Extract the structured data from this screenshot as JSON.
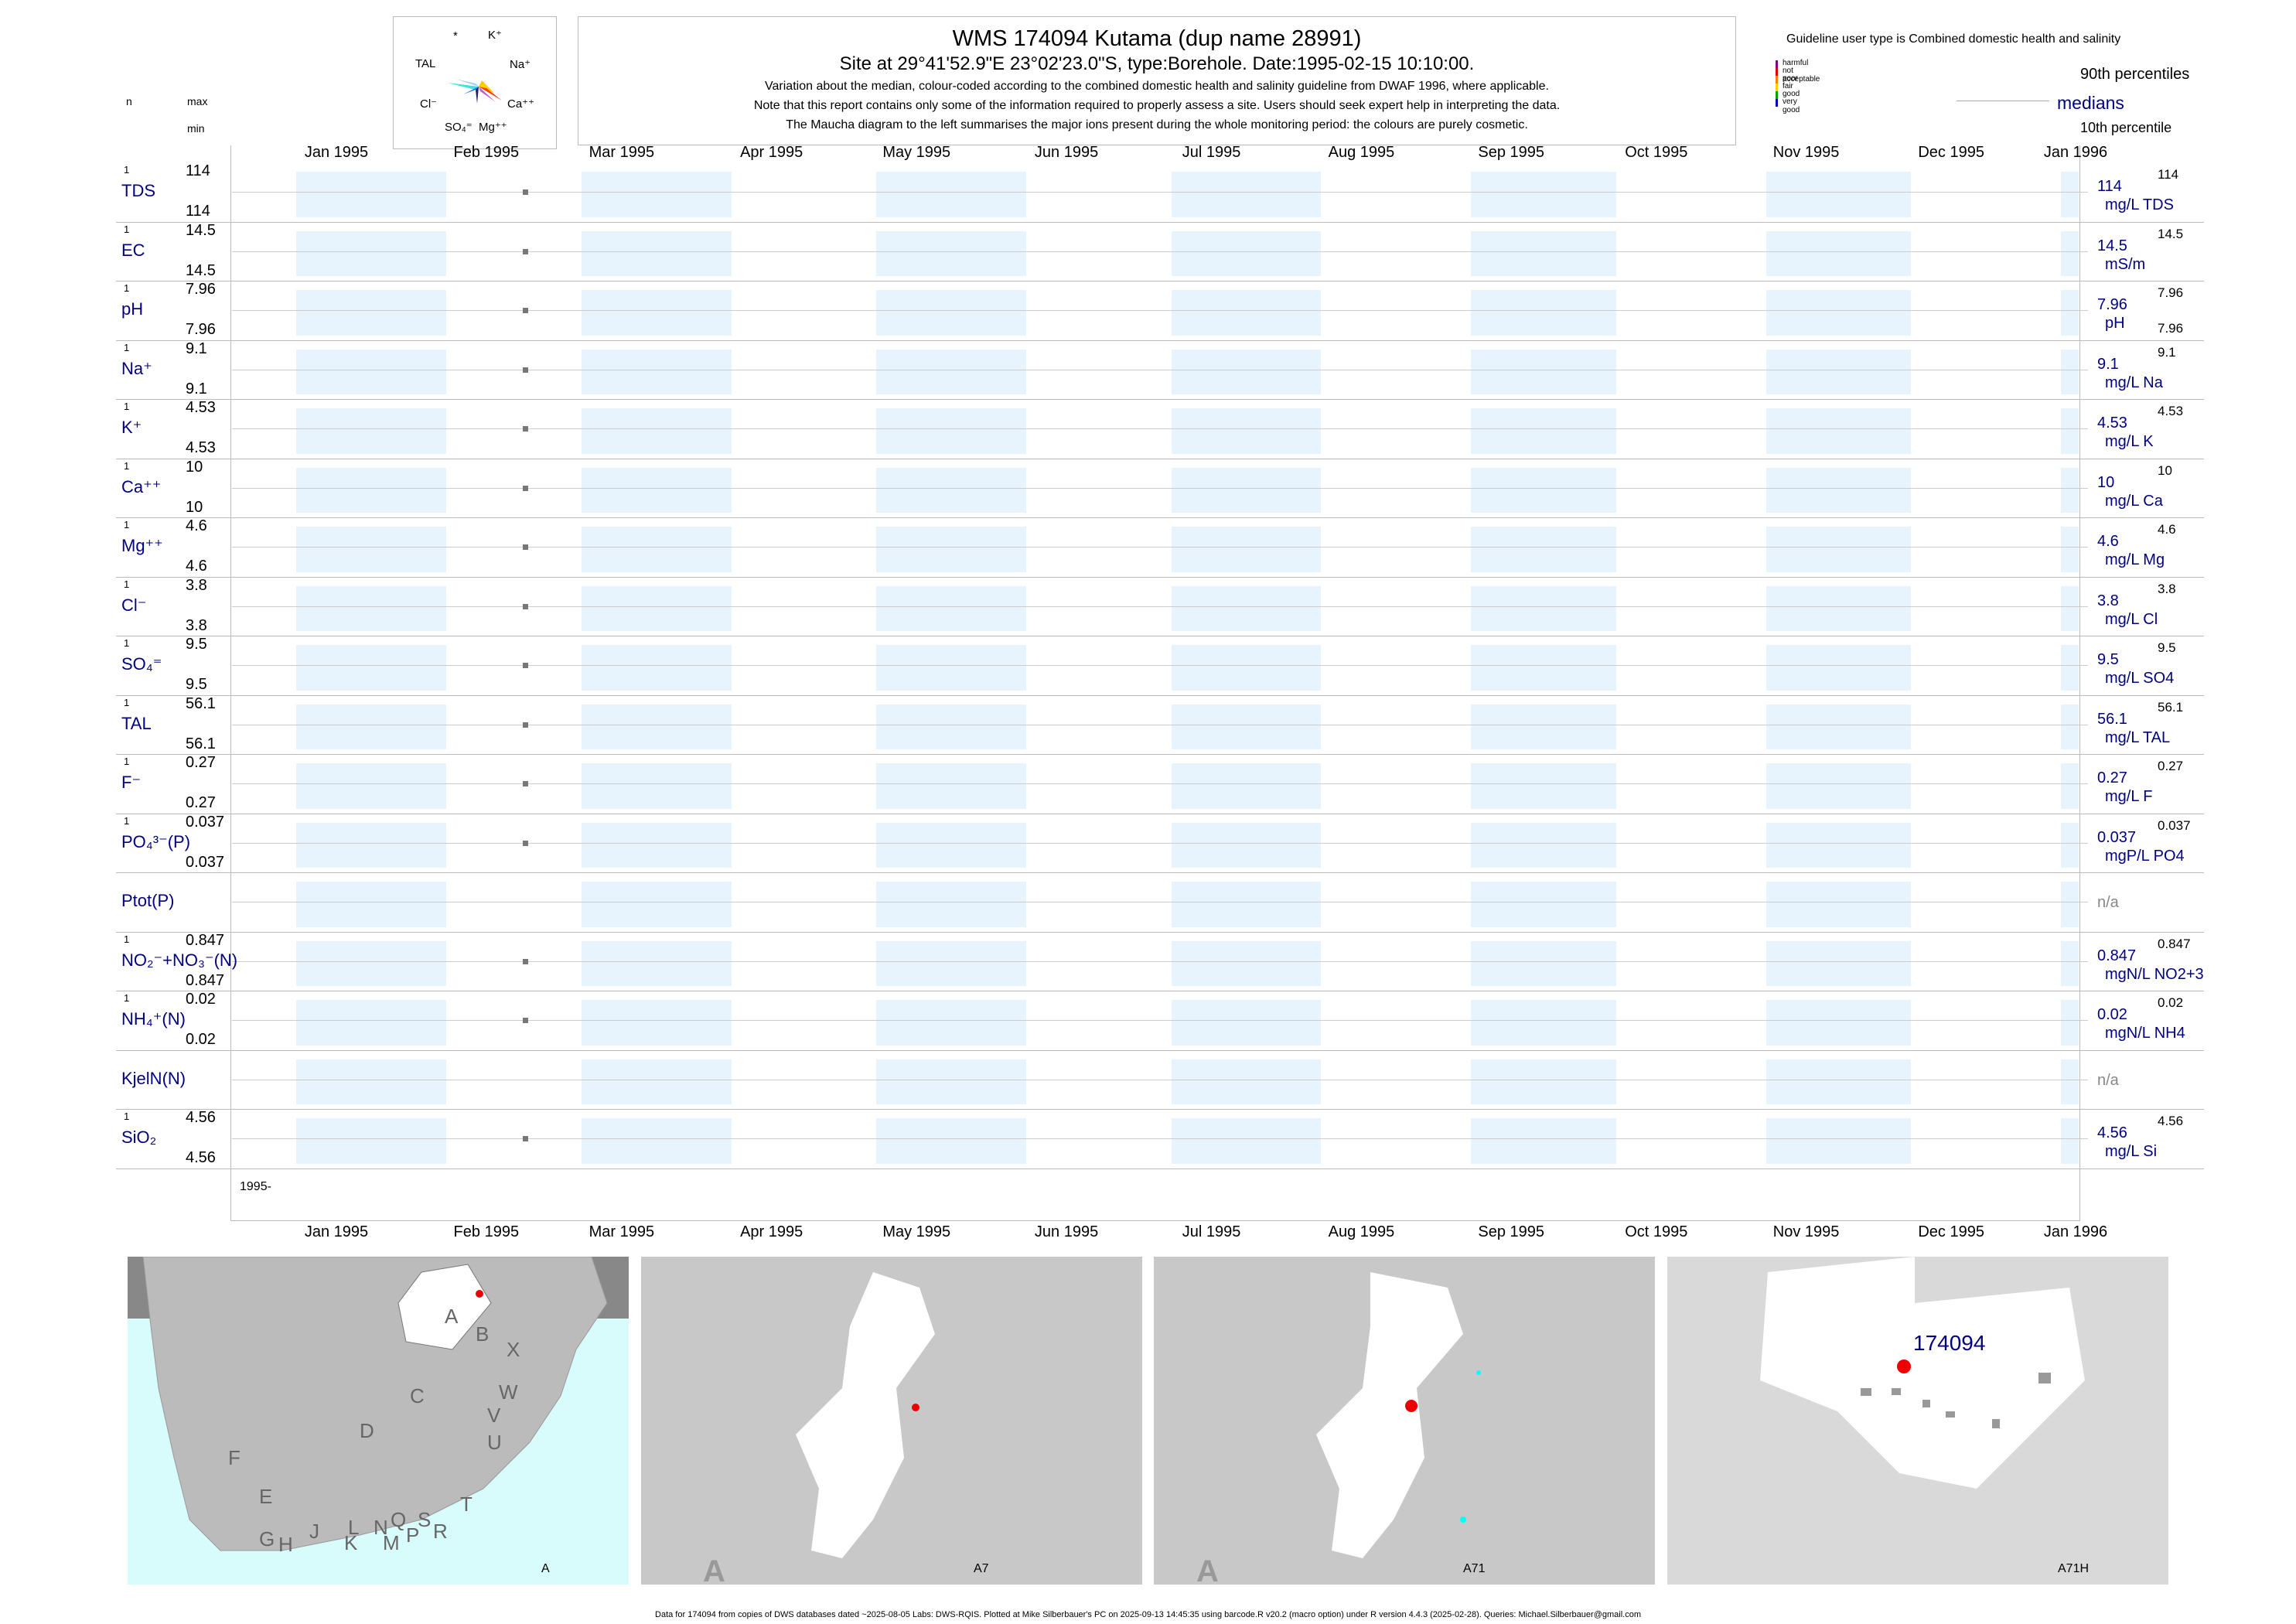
{
  "header": {
    "title": "WMS 174094  Kutama (dup name 28991)",
    "site": "Site at 29°41'52.9\"E 23°02'23.0\"S, type:Borehole. Date:1995-02-15 10:10:00.",
    "note1": "Variation about the median,  colour-coded according to the combined domestic health and salinity guideline from DWAF 1996, where applicable.",
    "note2": "Note that this report contains only some of the information required to properly assess a site. Users should seek expert help in interpreting the data.",
    "note3": "The Maucha diagram to the left summarises the major ions present during the whole monitoring period: the colours are purely cosmetic."
  },
  "maucha": {
    "ions": [
      "*",
      "K⁺",
      "TAL",
      "Na⁺",
      "Cl⁻",
      "Ca⁺⁺",
      "SO₄⁼",
      "Mg⁺⁺"
    ]
  },
  "legend": {
    "title": "Guideline user type is Combined domestic health and salinity",
    "classes": [
      {
        "label": "harmful",
        "color": "#800080"
      },
      {
        "label": "not acceptable",
        "color": "#e00000"
      },
      {
        "label": "poor",
        "color": "#ff8000"
      },
      {
        "label": "fair",
        "color": "#ffd000"
      },
      {
        "label": "good",
        "color": "#00a000"
      },
      {
        "label": "very good",
        "color": "#0000c0"
      }
    ],
    "p90": "90th percentiles",
    "medians": "medians",
    "p10": "10th percentile"
  },
  "left_header": {
    "n": "n",
    "max": "max",
    "min": "min"
  },
  "months": [
    "Jan 1995",
    "Feb 1995",
    "Mar 1995",
    "Apr 1995",
    "May 1995",
    "Jun 1995",
    "Jul 1995",
    "Aug 1995",
    "Sep 1995",
    "Oct 1995",
    "Nov 1995",
    "Dec 1995",
    "Jan 1996"
  ],
  "year_label": "1995-",
  "chart_data": {
    "type": "scatter",
    "x_range": [
      "1995-01-01",
      "1996-01-15"
    ],
    "sample_date": "1995-02-15",
    "series": [
      {
        "name": "TDS",
        "n": "1",
        "max": "114",
        "min": "114",
        "median": "114",
        "unit": "mg/L TDS",
        "p90": "114",
        "p10": ""
      },
      {
        "name": "EC",
        "n": "1",
        "max": "14.5",
        "min": "14.5",
        "median": "14.5",
        "unit": "mS/m",
        "p90": "14.5",
        "p10": ""
      },
      {
        "name": "pH",
        "n": "1",
        "max": "7.96",
        "min": "7.96",
        "median": "7.96",
        "unit": "pH",
        "p90": "7.96",
        "p10": "7.96"
      },
      {
        "name": "Na⁺",
        "n": "1",
        "max": "9.1",
        "min": "9.1",
        "median": "9.1",
        "unit": "mg/L Na",
        "p90": "9.1",
        "p10": ""
      },
      {
        "name": "K⁺",
        "n": "1",
        "max": "4.53",
        "min": "4.53",
        "median": "4.53",
        "unit": "mg/L K",
        "p90": "4.53",
        "p10": ""
      },
      {
        "name": "Ca⁺⁺",
        "n": "1",
        "max": "10",
        "min": "10",
        "median": "10",
        "unit": "mg/L Ca",
        "p90": "10",
        "p10": ""
      },
      {
        "name": "Mg⁺⁺",
        "n": "1",
        "max": "4.6",
        "min": "4.6",
        "median": "4.6",
        "unit": "mg/L Mg",
        "p90": "4.6",
        "p10": ""
      },
      {
        "name": "Cl⁻",
        "n": "1",
        "max": "3.8",
        "min": "3.8",
        "median": "3.8",
        "unit": "mg/L Cl",
        "p90": "3.8",
        "p10": ""
      },
      {
        "name": "SO₄⁼",
        "n": "1",
        "max": "9.5",
        "min": "9.5",
        "median": "9.5",
        "unit": "mg/L SO4",
        "p90": "9.5",
        "p10": ""
      },
      {
        "name": "TAL",
        "n": "1",
        "max": "56.1",
        "min": "56.1",
        "median": "56.1",
        "unit": "mg/L TAL",
        "p90": "56.1",
        "p10": ""
      },
      {
        "name": "F⁻",
        "n": "1",
        "max": "0.27",
        "min": "0.27",
        "median": "0.27",
        "unit": "mg/L F",
        "p90": "0.27",
        "p10": ""
      },
      {
        "name": "PO₄³⁻(P)",
        "n": "1",
        "max": "0.037",
        "min": "0.037",
        "median": "0.037",
        "unit": "mgP/L PO4",
        "p90": "0.037",
        "p10": ""
      },
      {
        "name": "Ptot(P)",
        "n": "",
        "max": "",
        "min": "",
        "median": "n/a",
        "unit": "",
        "p90": "",
        "p10": ""
      },
      {
        "name": "NO₂⁻+NO₃⁻(N)",
        "n": "1",
        "max": "0.847",
        "min": "0.847",
        "median": "0.847",
        "unit": "mgN/L NO2+3",
        "p90": "0.847",
        "p10": ""
      },
      {
        "name": "NH₄⁺(N)",
        "n": "1",
        "max": "0.02",
        "min": "0.02",
        "median": "0.02",
        "unit": "mgN/L NH4",
        "p90": "0.02",
        "p10": ""
      },
      {
        "name": "KjelN(N)",
        "n": "",
        "max": "",
        "min": "",
        "median": "n/a",
        "unit": "",
        "p90": "",
        "p10": ""
      },
      {
        "name": "SiO₂",
        "n": "1",
        "max": "4.56",
        "min": "4.56",
        "median": "4.56",
        "unit": "mg/L Si",
        "p90": "4.56",
        "p10": ""
      }
    ]
  },
  "maps": [
    {
      "caption": "A",
      "regions": [
        "A",
        "B",
        "X",
        "C",
        "W",
        "D",
        "V",
        "U",
        "F",
        "T",
        "E",
        "L",
        "N",
        "Q",
        "S",
        "G",
        "H",
        "J",
        "K",
        "M",
        "P",
        "R"
      ]
    },
    {
      "caption": "A7",
      "corner": "A"
    },
    {
      "caption": "A71",
      "corner": "A"
    },
    {
      "caption": "A71H",
      "site_label": "174094"
    }
  ],
  "footer": "Data for 174094 from copies of DWS databases dated ~2025-08-05 Labs: DWS-RQIS. Plotted at Mike Silberbauer's PC on 2025-09-13 14:45:35 using barcode.R v20.2 (macro option) under R version 4.4.3 (2025-02-28). Queries: Michael.Silberbauer@gmail.com"
}
